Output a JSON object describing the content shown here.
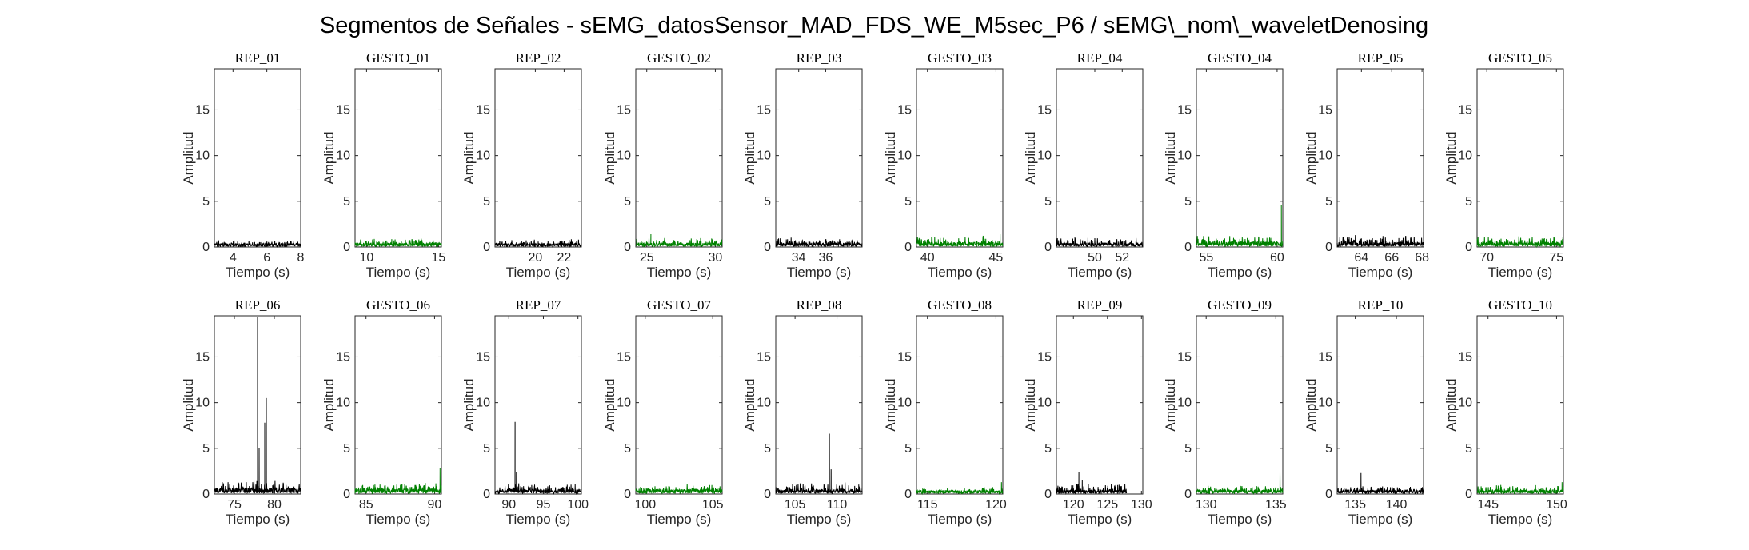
{
  "figure": {
    "title": "Segmentos de Señales - sEMG_datosSensor_MAD_FDS_WE_M5sec_P6 / sEMG\\_nom\\_waveletDenosing"
  },
  "chart_data": [
    {
      "type": "line",
      "title": "REP_01",
      "xlabel": "Tiempo (s)",
      "ylabel": "Amplitud",
      "xlim": [
        2.9,
        8
      ],
      "ylim": [
        0,
        19.5
      ],
      "xticks": [
        4,
        6,
        8
      ],
      "yticks": [
        0,
        5,
        10,
        15
      ],
      "color": "#000000",
      "baseline": 0.3,
      "noise": 0.25,
      "peaks": []
    },
    {
      "type": "line",
      "title": "GESTO_01",
      "xlabel": "Tiempo (s)",
      "ylabel": "Amplitud",
      "xlim": [
        9.2,
        15.2
      ],
      "ylim": [
        0,
        19.5
      ],
      "xticks": [
        10,
        15
      ],
      "yticks": [
        0,
        5,
        10,
        15
      ],
      "color": "#008000",
      "baseline": 0.35,
      "noise": 0.35,
      "peaks": []
    },
    {
      "type": "line",
      "title": "REP_02",
      "xlabel": "Tiempo (s)",
      "ylabel": "Amplitud",
      "xlim": [
        17.2,
        23.2
      ],
      "ylim": [
        0,
        19.5
      ],
      "xticks": [
        20,
        22
      ],
      "yticks": [
        0,
        5,
        10,
        15
      ],
      "color": "#000000",
      "baseline": 0.3,
      "noise": 0.3,
      "peaks": []
    },
    {
      "type": "line",
      "title": "GESTO_02",
      "xlabel": "Tiempo (s)",
      "ylabel": "Amplitud",
      "xlim": [
        24.2,
        30.5
      ],
      "ylim": [
        0,
        19.5
      ],
      "xticks": [
        25,
        30
      ],
      "yticks": [
        0,
        5,
        10,
        15
      ],
      "color": "#008000",
      "baseline": 0.35,
      "noise": 0.4,
      "peaks": [
        [
          25.3,
          1.4
        ]
      ]
    },
    {
      "type": "line",
      "title": "REP_03",
      "xlabel": "Tiempo (s)",
      "ylabel": "Amplitud",
      "xlim": [
        32.3,
        38.7
      ],
      "ylim": [
        0,
        19.5
      ],
      "xticks": [
        34,
        36
      ],
      "yticks": [
        0,
        5,
        10,
        15
      ],
      "color": "#000000",
      "baseline": 0.35,
      "noise": 0.35,
      "peaks": []
    },
    {
      "type": "line",
      "title": "GESTO_03",
      "xlabel": "Tiempo (s)",
      "ylabel": "Amplitud",
      "xlim": [
        39.2,
        45.5
      ],
      "ylim": [
        0,
        19.5
      ],
      "xticks": [
        40,
        45
      ],
      "yticks": [
        0,
        5,
        10,
        15
      ],
      "color": "#008000",
      "baseline": 0.4,
      "noise": 0.45,
      "peaks": [
        [
          40.3,
          1.1
        ],
        [
          45.3,
          1.4
        ]
      ]
    },
    {
      "type": "line",
      "title": "REP_04",
      "xlabel": "Tiempo (s)",
      "ylabel": "Amplitud",
      "xlim": [
        47.2,
        53.5
      ],
      "ylim": [
        0,
        19.5
      ],
      "xticks": [
        50,
        52
      ],
      "yticks": [
        0,
        5,
        10,
        15
      ],
      "color": "#000000",
      "baseline": 0.35,
      "noise": 0.4,
      "peaks": [
        [
          49.5,
          1.0
        ]
      ]
    },
    {
      "type": "line",
      "title": "GESTO_04",
      "xlabel": "Tiempo (s)",
      "ylabel": "Amplitud",
      "xlim": [
        54.3,
        60.4
      ],
      "ylim": [
        0,
        19.5
      ],
      "xticks": [
        55,
        60
      ],
      "yticks": [
        0,
        5,
        10,
        15
      ],
      "color": "#008000",
      "baseline": 0.45,
      "noise": 0.5,
      "peaks": [
        [
          54.8,
          1.2
        ],
        [
          60.3,
          4.6
        ]
      ]
    },
    {
      "type": "line",
      "title": "REP_05",
      "xlabel": "Tiempo (s)",
      "ylabel": "Amplitud",
      "xlim": [
        62.4,
        68.1
      ],
      "ylim": [
        0,
        19.5
      ],
      "xticks": [
        64,
        66,
        68
      ],
      "yticks": [
        0,
        5,
        10,
        15
      ],
      "color": "#000000",
      "baseline": 0.4,
      "noise": 0.45,
      "peaks": [
        [
          63.6,
          1.3
        ]
      ]
    },
    {
      "type": "line",
      "title": "GESTO_05",
      "xlabel": "Tiempo (s)",
      "ylabel": "Amplitud",
      "xlim": [
        69.3,
        75.5
      ],
      "ylim": [
        0,
        19.5
      ],
      "xticks": [
        70,
        75
      ],
      "yticks": [
        0,
        5,
        10,
        15
      ],
      "color": "#008000",
      "baseline": 0.4,
      "noise": 0.45,
      "peaks": []
    },
    {
      "type": "line",
      "title": "REP_06",
      "xlabel": "Tiempo (s)",
      "ylabel": "Amplitud",
      "xlim": [
        72.5,
        83.3
      ],
      "ylim": [
        0,
        19.5
      ],
      "xticks": [
        75,
        80
      ],
      "yticks": [
        0,
        5,
        10,
        15
      ],
      "color": "#000000",
      "baseline": 0.5,
      "noise": 0.6,
      "peaks": [
        [
          76.5,
          1.3
        ],
        [
          77.9,
          19.4
        ],
        [
          78.1,
          5.0
        ],
        [
          78.8,
          7.8
        ],
        [
          79.0,
          10.5
        ]
      ]
    },
    {
      "type": "line",
      "title": "GESTO_06",
      "xlabel": "Tiempo (s)",
      "ylabel": "Amplitud",
      "xlim": [
        84.2,
        90.5
      ],
      "ylim": [
        0,
        19.5
      ],
      "xticks": [
        85,
        90
      ],
      "yticks": [
        0,
        5,
        10,
        15
      ],
      "color": "#008000",
      "baseline": 0.45,
      "noise": 0.4,
      "peaks": [
        [
          90.4,
          2.8
        ]
      ]
    },
    {
      "type": "line",
      "title": "REP_07",
      "xlabel": "Tiempo (s)",
      "ylabel": "Amplitud",
      "xlim": [
        88,
        100.5
      ],
      "ylim": [
        0,
        19.5
      ],
      "xticks": [
        90,
        95,
        100
      ],
      "yticks": [
        0,
        5,
        10,
        15
      ],
      "color": "#000000",
      "baseline": 0.4,
      "noise": 0.5,
      "peaks": [
        [
          90.9,
          7.9
        ],
        [
          91.1,
          2.4
        ]
      ]
    },
    {
      "type": "line",
      "title": "GESTO_07",
      "xlabel": "Tiempo (s)",
      "ylabel": "Amplitud",
      "xlim": [
        99.3,
        105.7
      ],
      "ylim": [
        0,
        19.5
      ],
      "xticks": [
        100,
        105
      ],
      "yticks": [
        0,
        5,
        10,
        15
      ],
      "color": "#008000",
      "baseline": 0.4,
      "noise": 0.35,
      "peaks": []
    },
    {
      "type": "line",
      "title": "REP_08",
      "xlabel": "Tiempo (s)",
      "ylabel": "Amplitud",
      "xlim": [
        102.7,
        113
      ],
      "ylim": [
        0,
        19.5
      ],
      "xticks": [
        105,
        110
      ],
      "yticks": [
        0,
        5,
        10,
        15
      ],
      "color": "#000000",
      "baseline": 0.4,
      "noise": 0.5,
      "peaks": [
        [
          109.1,
          6.6
        ],
        [
          109.3,
          2.7
        ]
      ]
    },
    {
      "type": "line",
      "title": "GESTO_08",
      "xlabel": "Tiempo (s)",
      "ylabel": "Amplitud",
      "xlim": [
        114.2,
        120.5
      ],
      "ylim": [
        0,
        19.5
      ],
      "xticks": [
        115,
        120
      ],
      "yticks": [
        0,
        5,
        10,
        15
      ],
      "color": "#008000",
      "baseline": 0.3,
      "noise": 0.25,
      "peaks": [
        [
          120.4,
          1.3
        ]
      ]
    },
    {
      "type": "line",
      "title": "REP_09",
      "xlabel": "Tiempo (s)",
      "ylabel": "Amplitud",
      "xlim": [
        117.5,
        130.2
      ],
      "ylim": [
        0,
        19.5
      ],
      "xticks": [
        120,
        125,
        130
      ],
      "yticks": [
        0,
        5,
        10,
        15
      ],
      "color": "#000000",
      "baseline": 0.35,
      "noise": 0.5,
      "peaks": [
        [
          120.8,
          2.4
        ],
        [
          121.3,
          1.5
        ],
        [
          122.2,
          1.1
        ]
      ],
      "data_end": 127.8
    },
    {
      "type": "line",
      "title": "GESTO_09",
      "xlabel": "Tiempo (s)",
      "ylabel": "Amplitud",
      "xlim": [
        129.3,
        135.5
      ],
      "ylim": [
        0,
        19.5
      ],
      "xticks": [
        130,
        135
      ],
      "yticks": [
        0,
        5,
        10,
        15
      ],
      "color": "#008000",
      "baseline": 0.35,
      "noise": 0.35,
      "peaks": [
        [
          135.3,
          2.4
        ]
      ]
    },
    {
      "type": "line",
      "title": "REP_10",
      "xlabel": "Tiempo (s)",
      "ylabel": "Amplitud",
      "xlim": [
        132.8,
        143.3
      ],
      "ylim": [
        0,
        19.5
      ],
      "xticks": [
        135,
        140
      ],
      "yticks": [
        0,
        5,
        10,
        15
      ],
      "color": "#000000",
      "baseline": 0.35,
      "noise": 0.4,
      "peaks": [
        [
          135.7,
          2.3
        ]
      ]
    },
    {
      "type": "line",
      "title": "GESTO_10",
      "xlabel": "Tiempo (s)",
      "ylabel": "Amplitud",
      "xlim": [
        144.2,
        150.5
      ],
      "ylim": [
        0,
        19.5
      ],
      "xticks": [
        145,
        150
      ],
      "yticks": [
        0,
        5,
        10,
        15
      ],
      "color": "#008000",
      "baseline": 0.35,
      "noise": 0.35,
      "peaks": [
        [
          150.4,
          1.3
        ]
      ]
    }
  ]
}
